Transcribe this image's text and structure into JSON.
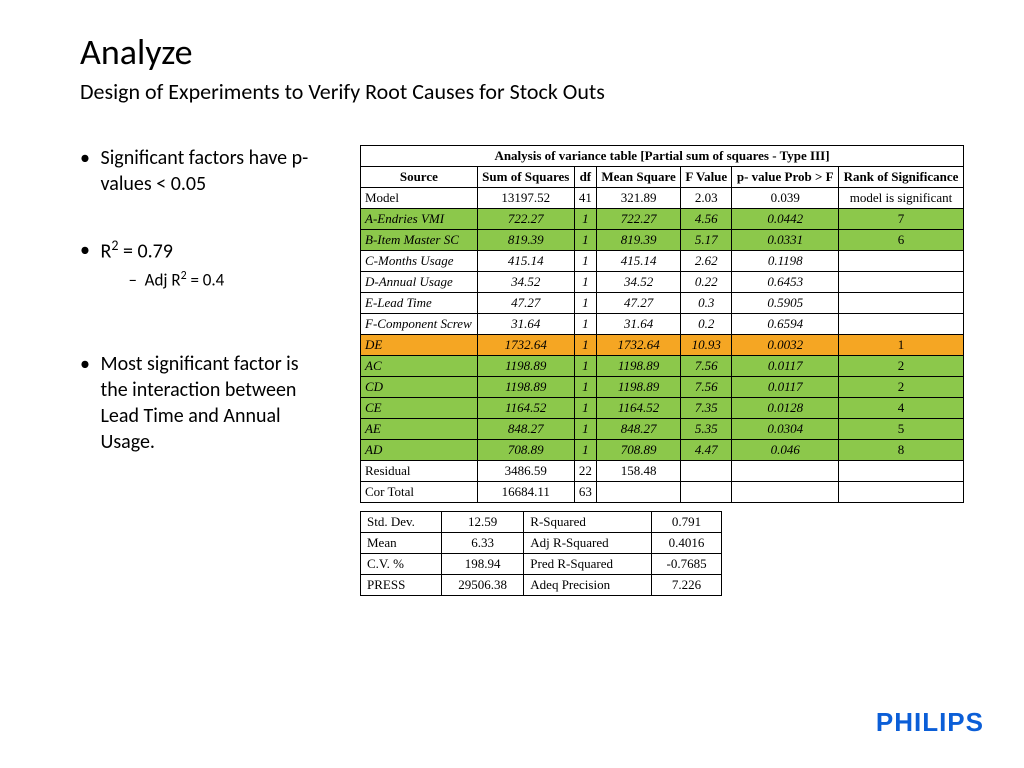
{
  "title": "Analyze",
  "subtitle": "Design of Experiments to Verify Root Causes for Stock Outs",
  "bullets": {
    "b1": "Significant factors have p-values < 0.05",
    "b2_pre": "R",
    "b2_post": " = 0.79",
    "b2_sub_pre": "Adj R",
    "b2_sub_post": " = 0.4",
    "b3": "Most significant factor is the interaction between Lead Time and Annual Usage."
  },
  "anova": {
    "caption": "Analysis of variance table [Partial sum of squares - Type III]",
    "headers": [
      "Source",
      "Sum of Squares",
      "df",
      "Mean Square",
      "F Value",
      "p- value Prob > F",
      "Rank of Significance"
    ],
    "rows": [
      {
        "style": "model",
        "cells": [
          "Model",
          "13197.52",
          "41",
          "321.89",
          "2.03",
          "0.039",
          "model is significant"
        ]
      },
      {
        "style": "green",
        "cells": [
          "A-Endries VMI",
          "722.27",
          "1",
          "722.27",
          "4.56",
          "0.0442",
          "7"
        ]
      },
      {
        "style": "green",
        "cells": [
          "B-Item Master SC",
          "819.39",
          "1",
          "819.39",
          "5.17",
          "0.0331",
          "6"
        ]
      },
      {
        "style": "italic",
        "cells": [
          "C-Months Usage",
          "415.14",
          "1",
          "415.14",
          "2.62",
          "0.1198",
          ""
        ]
      },
      {
        "style": "italic",
        "cells": [
          "D-Annual Usage",
          "34.52",
          "1",
          "34.52",
          "0.22",
          "0.6453",
          ""
        ]
      },
      {
        "style": "italic",
        "cells": [
          "E-Lead Time",
          "47.27",
          "1",
          "47.27",
          "0.3",
          "0.5905",
          ""
        ]
      },
      {
        "style": "italic",
        "cells": [
          "F-Component Screw",
          "31.64",
          "1",
          "31.64",
          "0.2",
          "0.6594",
          ""
        ]
      },
      {
        "style": "orange",
        "cells": [
          "DE",
          "1732.64",
          "1",
          "1732.64",
          "10.93",
          "0.0032",
          "1"
        ]
      },
      {
        "style": "green",
        "cells": [
          "AC",
          "1198.89",
          "1",
          "1198.89",
          "7.56",
          "0.0117",
          "2"
        ]
      },
      {
        "style": "green",
        "cells": [
          "CD",
          "1198.89",
          "1",
          "1198.89",
          "7.56",
          "0.0117",
          "2"
        ]
      },
      {
        "style": "green",
        "cells": [
          "CE",
          "1164.52",
          "1",
          "1164.52",
          "7.35",
          "0.0128",
          "4"
        ]
      },
      {
        "style": "green",
        "cells": [
          "AE",
          "848.27",
          "1",
          "848.27",
          "5.35",
          "0.0304",
          "5"
        ]
      },
      {
        "style": "green",
        "cells": [
          "AD",
          "708.89",
          "1",
          "708.89",
          "4.47",
          "0.046",
          "8"
        ]
      },
      {
        "style": "",
        "cells": [
          "Residual",
          "3486.59",
          "22",
          "158.48",
          "",
          "",
          ""
        ]
      },
      {
        "style": "",
        "cells": [
          "Cor Total",
          "16684.11",
          "63",
          "",
          "",
          "",
          ""
        ]
      }
    ]
  },
  "stats": {
    "rows": [
      [
        "Std. Dev.",
        "12.59",
        "R-Squared",
        "0.791"
      ],
      [
        "Mean",
        "6.33",
        "Adj R-Squared",
        "0.4016"
      ],
      [
        "C.V. %",
        "198.94",
        "Pred R-Squared",
        "-0.7685"
      ],
      [
        "PRESS",
        "29506.38",
        "Adeq Precision",
        "7.226"
      ]
    ]
  },
  "logo": "PHILIPS",
  "colors": {
    "green": "#8cc84b",
    "orange": "#f5a623",
    "logo": "#0b5ed7",
    "border": "#000000",
    "background": "#ffffff"
  }
}
